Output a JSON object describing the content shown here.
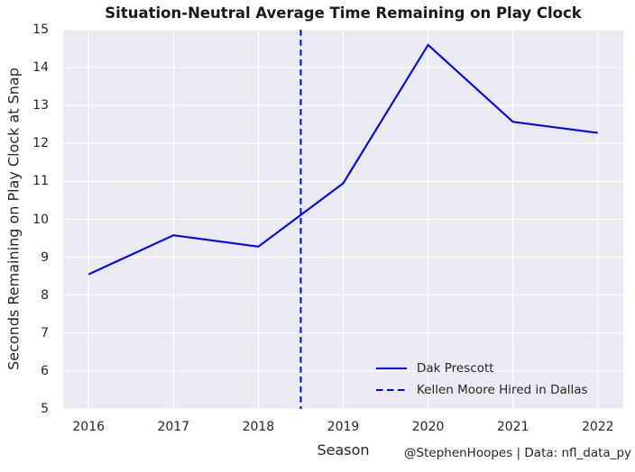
{
  "chart_data": {
    "type": "line",
    "title": "Situation-Neutral Average Time Remaining on Play Clock",
    "xlabel": "Season",
    "ylabel": "Seconds Remaining on Play Clock at Snap",
    "x": [
      2016,
      2017,
      2018,
      2019,
      2020,
      2021,
      2022
    ],
    "series": [
      {
        "name": "Dak Prescott",
        "line_style": "solid",
        "color": "#0000FF",
        "values": [
          8.55,
          9.58,
          9.28,
          10.95,
          14.6,
          12.57,
          12.28
        ]
      }
    ],
    "vline": {
      "x": 2018.5,
      "label": "Kellen Moore Hired in Dallas",
      "line_style": "dashed",
      "color": "#0000FF"
    },
    "xlim": [
      2015.7,
      2022.3
    ],
    "ylim": [
      5,
      15
    ],
    "xticks": [
      2016,
      2017,
      2018,
      2019,
      2020,
      2021,
      2022
    ],
    "yticks": [
      5,
      6,
      7,
      8,
      9,
      10,
      11,
      12,
      13,
      14,
      15
    ],
    "grid": true,
    "legend": {
      "position": "lower-right",
      "frame": false,
      "entries": [
        {
          "label": "Dak Prescott",
          "style": "solid",
          "color": "#0000FF"
        },
        {
          "label": "Kellen Moore Hired in Dallas",
          "style": "dashed",
          "color": "#0000FF"
        }
      ]
    },
    "colors": {
      "figure_bg": "#FFFFFF",
      "plot_bg": "#EAEAF2",
      "grid": "#FFFFFF",
      "text": "#262626",
      "line": "#0000FF"
    },
    "annotation": "@StephenHoopes | Data: nfl_data_py"
  }
}
